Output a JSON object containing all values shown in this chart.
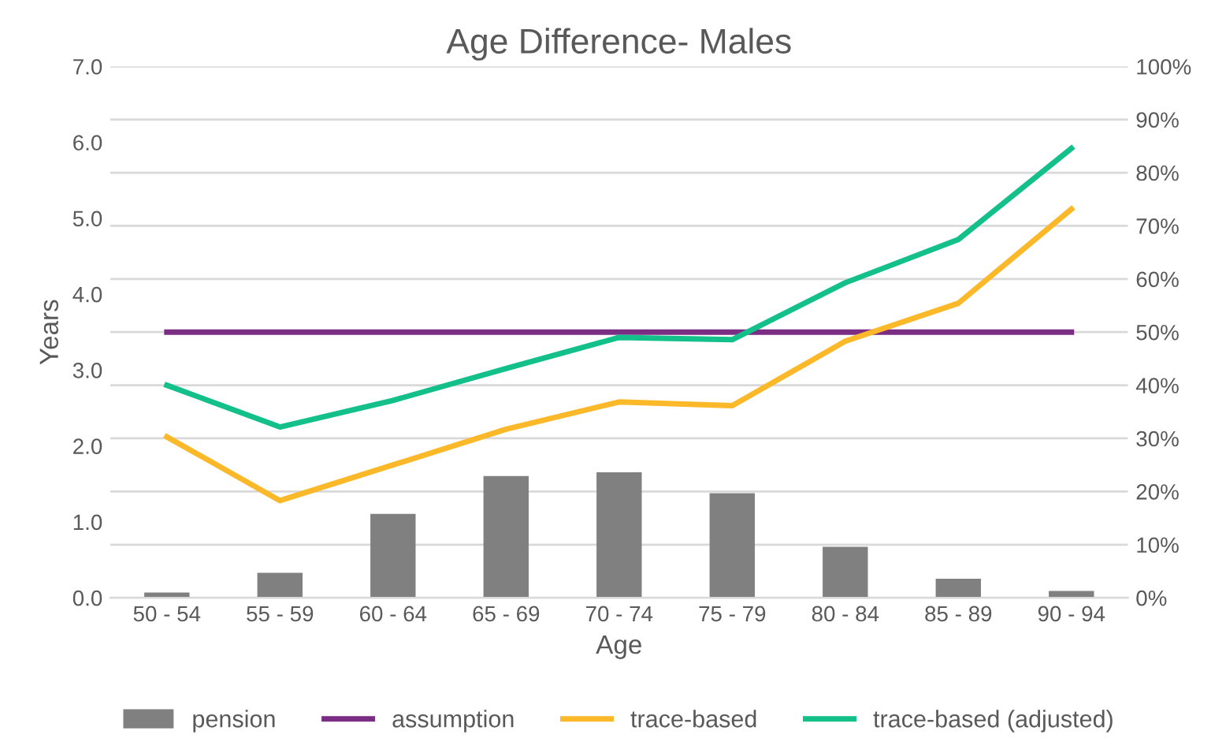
{
  "chart_data": {
    "type": "line",
    "title": "Age Difference- Males",
    "xlabel": "Age",
    "ylabel": "Years",
    "categories": [
      "50 - 54",
      "55 - 59",
      "60 - 64",
      "65 - 69",
      "70 - 74",
      "75 - 79",
      "80 - 84",
      "85 - 89",
      "90 - 94"
    ],
    "series": [
      {
        "name": "pension",
        "type": "bar",
        "axis": "y2",
        "color": "#808080",
        "values": [
          1.0,
          4.7,
          15.8,
          22.9,
          23.6,
          19.7,
          9.6,
          3.6,
          1.3
        ]
      },
      {
        "name": "assumption",
        "color": "#7b2c83",
        "values": [
          3.5,
          3.5,
          3.5,
          3.5,
          3.5,
          3.5,
          3.5,
          3.5,
          3.5
        ]
      },
      {
        "name": "trace-based",
        "color": "#fbb829",
        "values": [
          2.12,
          1.28,
          1.75,
          2.22,
          2.58,
          2.53,
          3.38,
          3.88,
          5.12
        ]
      },
      {
        "name": "trace-based (adjusted)",
        "color": "#13c08a",
        "values": [
          2.8,
          2.25,
          2.6,
          3.02,
          3.43,
          3.4,
          4.15,
          4.72,
          5.92
        ]
      }
    ],
    "ylim": [
      0,
      7
    ],
    "yticks": [
      {
        "value": 0,
        "label": "0.0"
      },
      {
        "value": 1,
        "label": "1.0"
      },
      {
        "value": 2,
        "label": "2.0"
      },
      {
        "value": 3,
        "label": "3.0"
      },
      {
        "value": 4,
        "label": "4.0"
      },
      {
        "value": 5,
        "label": "5.0"
      },
      {
        "value": 6,
        "label": "6.0"
      },
      {
        "value": 7,
        "label": "7.0"
      }
    ],
    "y2lim": [
      0,
      100
    ],
    "y2ticks": [
      {
        "value": 0,
        "label": "0%"
      },
      {
        "value": 10,
        "label": "10%"
      },
      {
        "value": 20,
        "label": "20%"
      },
      {
        "value": 30,
        "label": "30%"
      },
      {
        "value": 40,
        "label": "40%"
      },
      {
        "value": 50,
        "label": "50%"
      },
      {
        "value": 60,
        "label": "60%"
      },
      {
        "value": 70,
        "label": "70%"
      },
      {
        "value": 80,
        "label": "80%"
      },
      {
        "value": 90,
        "label": "90%"
      },
      {
        "value": 100,
        "label": "100%"
      }
    ],
    "grid": "y",
    "legend": "bottom",
    "marker": "none",
    "line_style": "solid"
  }
}
